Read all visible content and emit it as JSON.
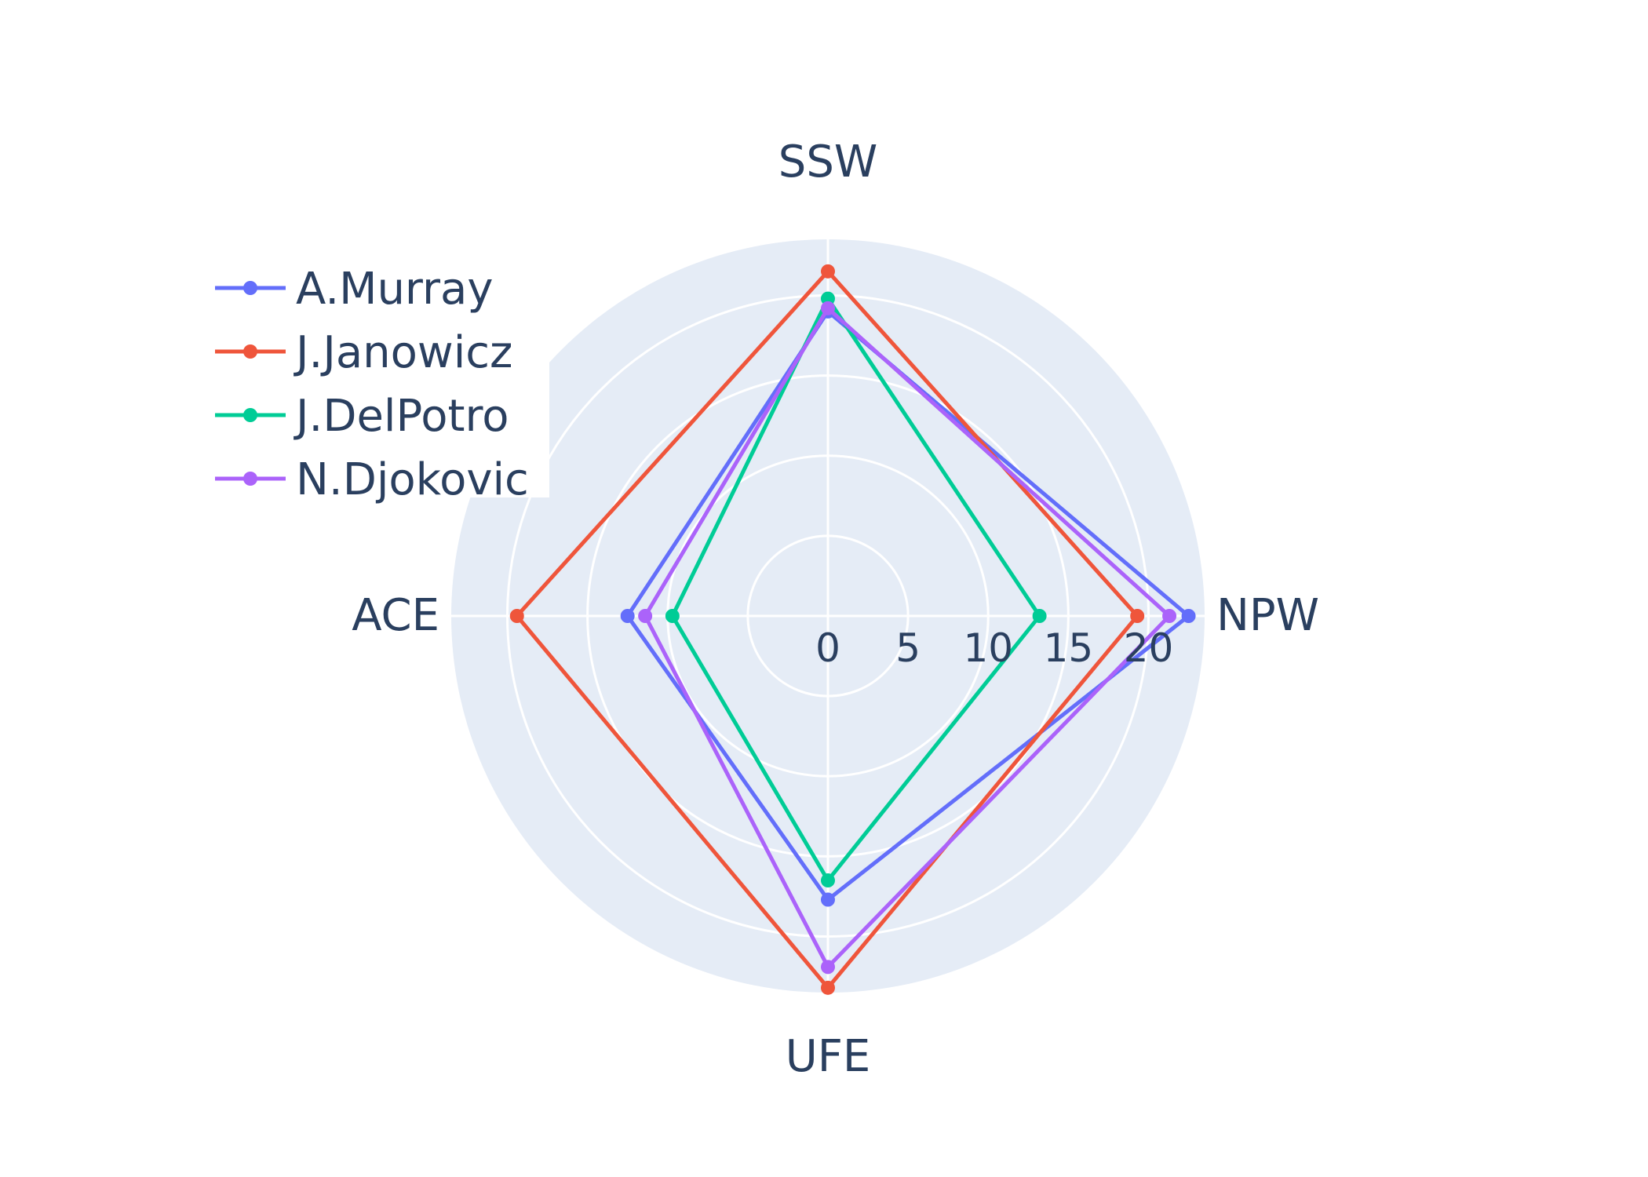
{
  "chart_data": {
    "type": "radar",
    "axes": [
      "SSW",
      "NPW",
      "UFE",
      "ACE"
    ],
    "radial_ticks": [
      0,
      5,
      10,
      15,
      20
    ],
    "radial_range": [
      0,
      23.5
    ],
    "grid": true,
    "legend_position": "top-left",
    "series": [
      {
        "name": "A.Murray",
        "color": "#636efa",
        "values": [
          19,
          22.5,
          17.7,
          12.5
        ]
      },
      {
        "name": "J.Janowicz",
        "color": "#ef553b",
        "values": [
          21.5,
          19.3,
          23.2,
          19.4
        ]
      },
      {
        "name": "J.DelPotro",
        "color": "#00cc96",
        "values": [
          19.8,
          13.2,
          16.5,
          9.7
        ]
      },
      {
        "name": "N.Djokovic",
        "color": "#ab63fa",
        "values": [
          19.2,
          21.3,
          21.9,
          11.4
        ]
      }
    ]
  }
}
